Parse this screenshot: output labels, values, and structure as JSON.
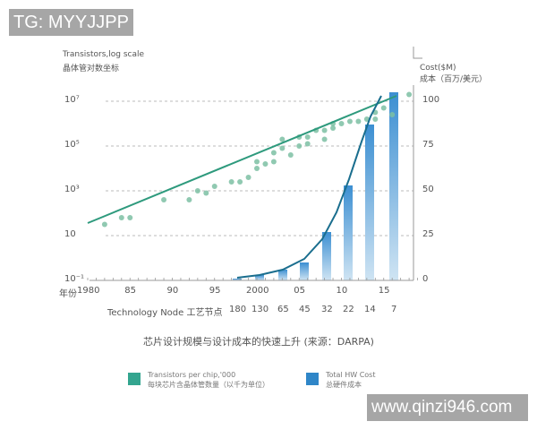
{
  "watermarks": {
    "top_left": "TG: MYYJJPP",
    "bottom_right": "www.qinzi946.com"
  },
  "chart_data": {
    "type": "scatter+line+bar",
    "title": "芯片设计规模与设计成本的快速上升 (来源：DARPA)",
    "left_axis": {
      "label_en": "Transistors,log scale",
      "label_zh": "晶体管对数坐标",
      "ticks": [
        "10⁷",
        "10⁵",
        "10³",
        "10",
        "10⁻¹"
      ],
      "tick_values": [
        10000000,
        100000,
        1000,
        10,
        0.1
      ],
      "scale": "log"
    },
    "right_axis": {
      "label_en": "Cost($M)",
      "label_zh": "成本（百万/美元）",
      "ticks": [
        "100",
        "75",
        "50",
        "25",
        "0"
      ],
      "ylim": [
        0,
        100
      ]
    },
    "x_axis": {
      "label_zh": "年份",
      "ticks": [
        "1980",
        "85",
        "90",
        "95",
        "2000",
        "05",
        "10",
        "15"
      ],
      "tick_years": [
        1980,
        1985,
        1990,
        1995,
        2000,
        2005,
        2010,
        2015
      ]
    },
    "node_axis": {
      "label": "Technology Node 工艺节点",
      "nodes": [
        "180",
        "130",
        "65",
        "45",
        "32",
        "22",
        "14",
        "7"
      ]
    },
    "series": [
      {
        "name": "Transistors per chip,'000",
        "name_zh": "每块芯片含晶体管数量（以千为单位）",
        "color": "#2ea38a",
        "kind": "scatter+trend",
        "trend_line": [
          [
            1980,
            25
          ],
          [
            2018,
            20000000
          ]
        ],
        "points_year_log10": [
          [
            1982,
            1.5
          ],
          [
            1984,
            1.8
          ],
          [
            1985,
            1.8
          ],
          [
            1989,
            2.6
          ],
          [
            1992,
            2.6
          ],
          [
            1993,
            3.0
          ],
          [
            1994,
            2.9
          ],
          [
            1995,
            3.2
          ],
          [
            1997,
            3.4
          ],
          [
            1998,
            3.4
          ],
          [
            1999,
            3.6
          ],
          [
            2000,
            4.0
          ],
          [
            2000,
            4.3
          ],
          [
            2001,
            4.2
          ],
          [
            2002,
            4.7
          ],
          [
            2002,
            4.3
          ],
          [
            2003,
            4.9
          ],
          [
            2003,
            5.3
          ],
          [
            2004,
            4.6
          ],
          [
            2005,
            5.0
          ],
          [
            2005,
            5.4
          ],
          [
            2006,
            5.4
          ],
          [
            2006,
            5.1
          ],
          [
            2007,
            5.7
          ],
          [
            2008,
            5.3
          ],
          [
            2008,
            5.7
          ],
          [
            2009,
            6.0
          ],
          [
            2009,
            5.8
          ],
          [
            2010,
            6.0
          ],
          [
            2011,
            6.1
          ],
          [
            2012,
            6.1
          ],
          [
            2013,
            6.2
          ],
          [
            2014,
            6.5
          ],
          [
            2014,
            6.2
          ],
          [
            2015,
            6.7
          ],
          [
            2016,
            6.4
          ],
          [
            2018,
            7.3
          ]
        ]
      },
      {
        "name": "Total HW Cost",
        "name_zh": "总硬件成本",
        "color": "#3a8fd0",
        "kind": "bar+curve",
        "categories": [
          "180",
          "130",
          "65",
          "45",
          "32",
          "22",
          "14",
          "7"
        ],
        "values": [
          1,
          3,
          6,
          10,
          27,
          53,
          87,
          105
        ],
        "curve_color": "#1a6e8e"
      }
    ],
    "grid": "dashed horizontal",
    "legend_position": "bottom"
  },
  "legend": [
    {
      "en": "Transistors per chip,'000",
      "zh": "每块芯片含晶体管数量（以千为单位）",
      "color": "#33a58f"
    },
    {
      "en": "Total HW Cost",
      "zh": "总硬件成本",
      "color": "#2f86c8"
    }
  ]
}
